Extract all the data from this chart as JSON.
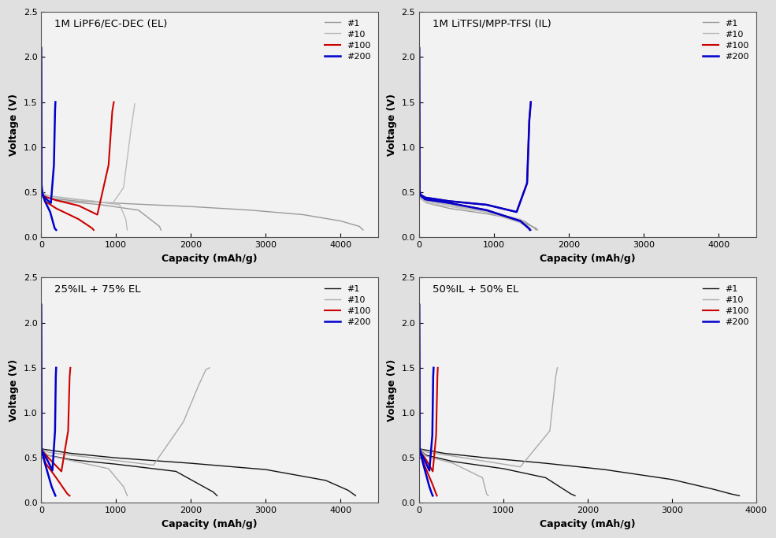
{
  "panels": [
    {
      "title": "1M LiPF6/EC-DEC (EL)",
      "xlim": [
        0,
        4500
      ],
      "ylim": [
        0,
        2.5
      ],
      "xticks": [
        0,
        1000,
        2000,
        3000,
        4000
      ],
      "yticks": [
        0,
        0.5,
        1.0,
        1.5,
        2.0,
        2.5
      ],
      "curves": [
        {
          "label": "#1",
          "color": "#999999",
          "lw": 1.0,
          "ch_x": [
            0,
            5,
            20,
            80,
            300,
            800,
            1300,
            1580,
            1600
          ],
          "ch_y": [
            2.1,
            0.52,
            0.48,
            0.44,
            0.4,
            0.36,
            0.3,
            0.12,
            0.08
          ],
          "dc_x": [
            0,
            500,
            1200,
            2000,
            2800,
            3500,
            4000,
            4250,
            4300
          ],
          "dc_y": [
            0.44,
            0.4,
            0.37,
            0.34,
            0.3,
            0.25,
            0.18,
            0.12,
            0.08
          ]
        },
        {
          "label": "#10",
          "color": "#bbbbbb",
          "lw": 1.0,
          "ch_x": [
            0,
            5,
            20,
            80,
            300,
            700,
            1050,
            1130,
            1150
          ],
          "ch_y": [
            2.1,
            0.54,
            0.5,
            0.46,
            0.43,
            0.4,
            0.36,
            0.2,
            0.08
          ],
          "dc_x": [
            0,
            100,
            400,
            700,
            950,
            1100,
            1200,
            1250
          ],
          "dc_y": [
            0.48,
            0.46,
            0.43,
            0.4,
            0.37,
            0.55,
            1.2,
            1.48
          ]
        },
        {
          "label": "#100",
          "color": "#cc0000",
          "lw": 1.5,
          "ch_x": [
            0,
            5,
            15,
            50,
            200,
            500,
            680,
            700
          ],
          "ch_y": [
            2.1,
            0.56,
            0.48,
            0.4,
            0.32,
            0.2,
            0.1,
            0.08
          ],
          "dc_x": [
            0,
            50,
            200,
            500,
            750,
            900,
            950,
            970
          ],
          "dc_y": [
            0.48,
            0.45,
            0.41,
            0.35,
            0.25,
            0.8,
            1.4,
            1.5
          ]
        },
        {
          "label": "#200",
          "color": "#0000cc",
          "lw": 1.8,
          "ch_x": [
            0,
            5,
            15,
            50,
            120,
            180,
            200
          ],
          "ch_y": [
            2.1,
            0.58,
            0.5,
            0.4,
            0.28,
            0.1,
            0.08
          ],
          "dc_x": [
            0,
            20,
            70,
            130,
            170,
            185,
            190
          ],
          "dc_y": [
            0.48,
            0.46,
            0.42,
            0.38,
            0.8,
            1.4,
            1.5
          ]
        }
      ]
    },
    {
      "title": "1M LiTFSI/MPP-TFSI (IL)",
      "xlim": [
        0,
        4500
      ],
      "ylim": [
        0,
        2.5
      ],
      "xticks": [
        0,
        1000,
        2000,
        3000,
        4000
      ],
      "yticks": [
        0,
        0.5,
        1.0,
        1.5,
        2.0,
        2.5
      ],
      "curves": [
        {
          "label": "#1",
          "color": "#999999",
          "lw": 1.0,
          "ch_x": [
            0,
            5,
            20,
            80,
            400,
            900,
            1400,
            1560,
            1580
          ],
          "ch_y": [
            2.1,
            0.5,
            0.44,
            0.4,
            0.36,
            0.28,
            0.16,
            0.1,
            0.08
          ],
          "dc_x": [
            0,
            100,
            400,
            900,
            1400,
            1540,
            1560
          ],
          "dc_y": [
            0.44,
            0.38,
            0.32,
            0.26,
            0.18,
            0.1,
            0.08
          ]
        },
        {
          "label": "#10",
          "color": "#bbbbbb",
          "lw": 1.0,
          "ch_x": [
            0,
            5,
            20,
            80,
            400,
            900,
            1350,
            1480,
            1500
          ],
          "ch_y": [
            2.1,
            0.5,
            0.44,
            0.4,
            0.36,
            0.28,
            0.16,
            0.1,
            0.08
          ],
          "dc_x": [
            0,
            100,
            400,
            900,
            1350,
            1480,
            1500
          ],
          "dc_y": [
            0.44,
            0.38,
            0.34,
            0.28,
            0.2,
            0.1,
            0.08
          ]
        },
        {
          "label": "#100",
          "color": "#cc0000",
          "lw": 1.5,
          "ch_x": [
            0,
            5,
            20,
            80,
            400,
            900,
            1350,
            1460,
            1480
          ],
          "ch_y": [
            2.1,
            0.52,
            0.46,
            0.42,
            0.38,
            0.3,
            0.18,
            0.1,
            0.08
          ],
          "dc_x": [
            0,
            80,
            400,
            900,
            1300,
            1440,
            1470,
            1490
          ],
          "dc_y": [
            0.48,
            0.44,
            0.4,
            0.36,
            0.28,
            0.6,
            1.3,
            1.5
          ]
        },
        {
          "label": "#200",
          "color": "#0000cc",
          "lw": 1.8,
          "ch_x": [
            0,
            5,
            20,
            80,
            400,
            900,
            1350,
            1460,
            1480
          ],
          "ch_y": [
            2.1,
            0.52,
            0.46,
            0.42,
            0.38,
            0.3,
            0.18,
            0.1,
            0.08
          ],
          "dc_x": [
            0,
            80,
            400,
            900,
            1300,
            1440,
            1470,
            1490
          ],
          "dc_y": [
            0.48,
            0.44,
            0.4,
            0.36,
            0.28,
            0.6,
            1.3,
            1.5
          ]
        }
      ]
    },
    {
      "title": "25%IL + 75% EL",
      "xlim": [
        0,
        4500
      ],
      "ylim": [
        0,
        2.5
      ],
      "xticks": [
        0,
        1000,
        2000,
        3000,
        4000
      ],
      "yticks": [
        0,
        0.5,
        1.0,
        1.5,
        2.0,
        2.5
      ],
      "curves": [
        {
          "label": "#1",
          "color": "#111111",
          "lw": 1.0,
          "ch_x": [
            0,
            5,
            20,
            80,
            400,
            1000,
            1800,
            2300,
            2350
          ],
          "ch_y": [
            2.2,
            0.62,
            0.58,
            0.53,
            0.48,
            0.43,
            0.35,
            0.12,
            0.08
          ],
          "dc_x": [
            0,
            400,
            1000,
            2000,
            3000,
            3800,
            4100,
            4200
          ],
          "dc_y": [
            0.6,
            0.55,
            0.5,
            0.44,
            0.37,
            0.25,
            0.14,
            0.08
          ]
        },
        {
          "label": "#10",
          "color": "#aaaaaa",
          "lw": 1.0,
          "ch_x": [
            0,
            5,
            20,
            80,
            400,
            900,
            1100,
            1150
          ],
          "ch_y": [
            2.2,
            0.62,
            0.58,
            0.53,
            0.47,
            0.38,
            0.18,
            0.08
          ],
          "dc_x": [
            0,
            100,
            500,
            1000,
            1500,
            1900,
            2100,
            2200,
            2250
          ],
          "dc_y": [
            0.6,
            0.56,
            0.52,
            0.47,
            0.42,
            0.9,
            1.3,
            1.48,
            1.5
          ]
        },
        {
          "label": "#100",
          "color": "#cc0000",
          "lw": 1.5,
          "ch_x": [
            0,
            5,
            15,
            60,
            200,
            350,
            380
          ],
          "ch_y": [
            2.2,
            0.62,
            0.55,
            0.44,
            0.28,
            0.1,
            0.08
          ],
          "dc_x": [
            0,
            30,
            120,
            270,
            360,
            380,
            390
          ],
          "dc_y": [
            0.6,
            0.56,
            0.48,
            0.35,
            0.8,
            1.4,
            1.5
          ]
        },
        {
          "label": "#200",
          "color": "#0000cc",
          "lw": 1.8,
          "ch_x": [
            0,
            5,
            15,
            50,
            140,
            180,
            190
          ],
          "ch_y": [
            2.2,
            0.62,
            0.55,
            0.44,
            0.18,
            0.1,
            0.08
          ],
          "dc_x": [
            0,
            20,
            80,
            150,
            185,
            195,
            200
          ],
          "dc_y": [
            0.6,
            0.56,
            0.48,
            0.36,
            0.8,
            1.4,
            1.5
          ]
        }
      ]
    },
    {
      "title": "50%IL + 50% EL",
      "xlim": [
        0,
        4000
      ],
      "ylim": [
        0,
        2.5
      ],
      "xticks": [
        0,
        1000,
        2000,
        3000,
        4000
      ],
      "yticks": [
        0,
        0.5,
        1.0,
        1.5,
        2.0,
        2.5
      ],
      "curves": [
        {
          "label": "#1",
          "color": "#111111",
          "lw": 1.0,
          "ch_x": [
            0,
            5,
            20,
            80,
            400,
            1000,
            1500,
            1800,
            1850
          ],
          "ch_y": [
            2.2,
            0.62,
            0.58,
            0.53,
            0.46,
            0.38,
            0.28,
            0.1,
            0.08
          ],
          "dc_x": [
            0,
            300,
            800,
            1500,
            2200,
            3000,
            3500,
            3700,
            3800
          ],
          "dc_y": [
            0.6,
            0.55,
            0.5,
            0.44,
            0.37,
            0.26,
            0.15,
            0.1,
            0.08
          ]
        },
        {
          "label": "#10",
          "color": "#aaaaaa",
          "lw": 1.0,
          "ch_x": [
            0,
            5,
            20,
            80,
            400,
            750,
            800,
            820
          ],
          "ch_y": [
            2.2,
            0.62,
            0.58,
            0.52,
            0.44,
            0.28,
            0.1,
            0.08
          ],
          "dc_x": [
            0,
            100,
            400,
            800,
            1200,
            1550,
            1620,
            1640
          ],
          "dc_y": [
            0.6,
            0.56,
            0.52,
            0.46,
            0.4,
            0.8,
            1.4,
            1.5
          ]
        },
        {
          "label": "#100",
          "color": "#cc0000",
          "lw": 1.5,
          "ch_x": [
            0,
            5,
            15,
            60,
            160,
            200,
            210
          ],
          "ch_y": [
            2.2,
            0.62,
            0.55,
            0.42,
            0.2,
            0.1,
            0.08
          ],
          "dc_x": [
            0,
            20,
            80,
            160,
            200,
            215,
            220
          ],
          "dc_y": [
            0.6,
            0.56,
            0.48,
            0.35,
            0.75,
            1.4,
            1.5
          ]
        },
        {
          "label": "#200",
          "color": "#0000cc",
          "lw": 1.8,
          "ch_x": [
            0,
            5,
            15,
            50,
            120,
            150,
            160
          ],
          "ch_y": [
            2.2,
            0.62,
            0.55,
            0.42,
            0.18,
            0.1,
            0.08
          ],
          "dc_x": [
            0,
            15,
            60,
            120,
            155,
            165,
            170
          ],
          "dc_y": [
            0.6,
            0.56,
            0.48,
            0.36,
            0.75,
            1.4,
            1.5
          ]
        }
      ]
    }
  ],
  "xlabel": "Capacity (mAh/g)",
  "ylabel": "Voltage (V)",
  "background_color": "#f0f0f0",
  "figure_facecolor": "#e8e8e8"
}
